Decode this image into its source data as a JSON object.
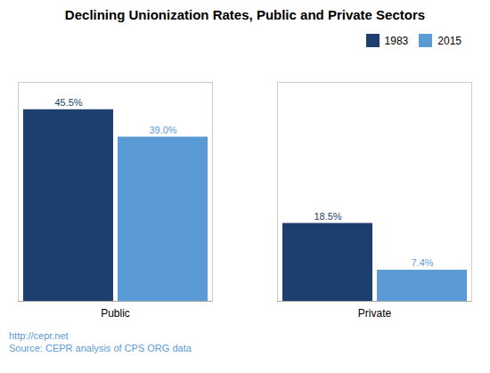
{
  "chart_data": {
    "type": "bar",
    "title": "Declining Unionization Rates, Public and Private Sectors",
    "categories": [
      "Public",
      "Private"
    ],
    "series": [
      {
        "name": "1983",
        "color": "#1C3F6E",
        "values": [
          45.5,
          18.5
        ],
        "value_labels": [
          "45.5%",
          "18.5%"
        ]
      },
      {
        "name": "2015",
        "color": "#5B9BD5",
        "values": [
          39.0,
          7.4
        ],
        "value_labels": [
          "39.0%",
          "7.4%"
        ]
      }
    ],
    "ylim": [
      0,
      52
    ],
    "tick_labels": "x",
    "data_labels": true,
    "legend": "upper right",
    "grid": false,
    "annotations": [
      "http://cepr.net",
      "Source: CEPR analysis of CPS ORG data"
    ]
  }
}
